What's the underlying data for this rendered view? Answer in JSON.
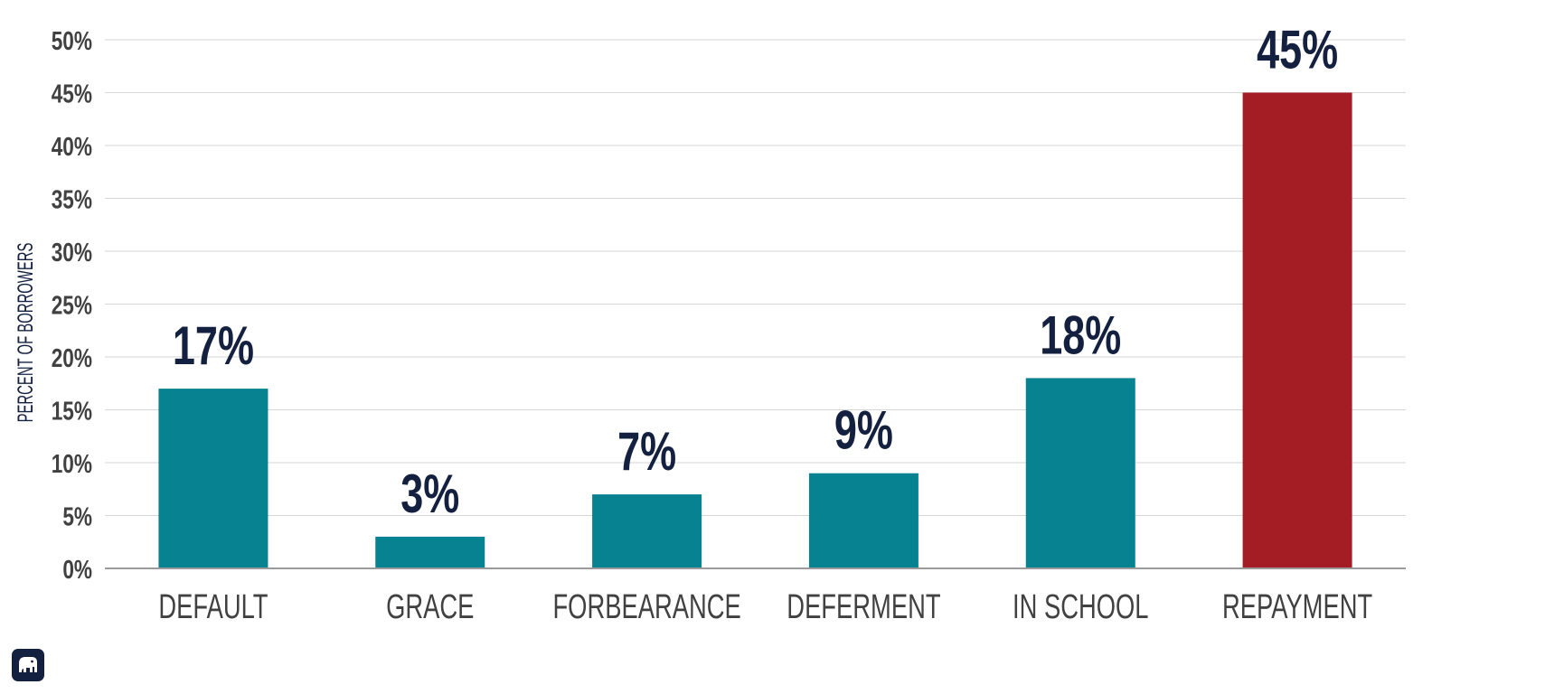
{
  "chart_data": {
    "type": "bar",
    "categories": [
      "DEFAULT",
      "GRACE",
      "FORBEARANCE",
      "DEFERMENT",
      "IN SCHOOL",
      "REPAYMENT"
    ],
    "values": [
      17,
      3,
      7,
      9,
      18,
      45
    ],
    "data_labels": [
      "17%",
      "3%",
      "7%",
      "9%",
      "18%",
      "45%"
    ],
    "ylabel": "PERCENT OF BORROWERS",
    "ylim": [
      0,
      50
    ],
    "yticks": [
      0,
      5,
      10,
      15,
      20,
      25,
      30,
      35,
      40,
      45,
      50
    ],
    "ytick_labels": [
      "0%",
      "5%",
      "10%",
      "15%",
      "20%",
      "25%",
      "30%",
      "35%",
      "40%",
      "45%",
      "50%"
    ],
    "grid": true,
    "colors": [
      "#078290",
      "#078290",
      "#078290",
      "#078290",
      "#078290",
      "#a51d24"
    ],
    "gridline_color": "#d6d6d6",
    "axis_color": "#9a9a9a"
  },
  "logo": {
    "icon": "elephant-icon"
  }
}
